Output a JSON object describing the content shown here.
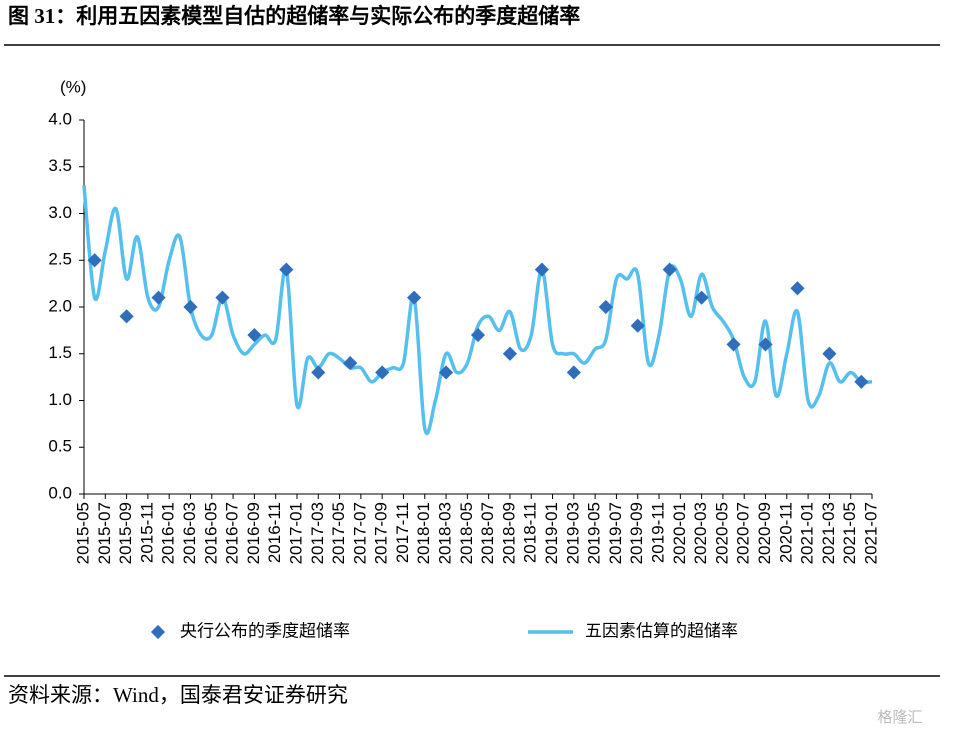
{
  "chart_data": {
    "type": "line",
    "title": "图 31：利用五因素模型自估的超储率与实际公布的季度超储率",
    "y_label": "(%)",
    "source": "资料来源：Wind，国泰君安证券研究",
    "watermark": "格隆汇",
    "categories": [
      "2015-05",
      null,
      "2015-07",
      null,
      "2015-09",
      null,
      "2015-11",
      null,
      "2016-01",
      null,
      "2016-03",
      null,
      "2016-05",
      null,
      "2016-07",
      null,
      "2016-09",
      null,
      "2016-11",
      null,
      "2017-01",
      null,
      "2017-03",
      null,
      "2017-05",
      null,
      "2017-07",
      null,
      "2017-09",
      null,
      "2017-11",
      null,
      "2018-01",
      null,
      "2018-03",
      null,
      "2018-05",
      null,
      "2018-07",
      null,
      "2018-09",
      null,
      "2018-11",
      null,
      "2019-01",
      null,
      "2019-03",
      null,
      "2019-05",
      null,
      "2019-07",
      null,
      "2019-09",
      null,
      "2019-11",
      null,
      "2020-01",
      null,
      "2020-03",
      null,
      "2020-05",
      null,
      "2020-07",
      null,
      "2020-09",
      null,
      "2020-11",
      null,
      "2021-01",
      null,
      "2021-03",
      null,
      "2021-05",
      null,
      "2021-07"
    ],
    "series": [
      {
        "name": "央行公布的季度超储率",
        "color": "#2f6eba",
        "marker": "diamond",
        "values": [
          null,
          2.5,
          null,
          null,
          1.9,
          null,
          null,
          2.1,
          null,
          null,
          2.0,
          null,
          null,
          2.1,
          null,
          null,
          1.7,
          null,
          null,
          2.4,
          null,
          null,
          1.3,
          null,
          null,
          1.4,
          null,
          null,
          1.3,
          null,
          null,
          2.1,
          null,
          null,
          1.3,
          null,
          null,
          1.7,
          null,
          null,
          1.5,
          null,
          null,
          2.4,
          null,
          null,
          1.3,
          null,
          null,
          2.0,
          null,
          null,
          1.8,
          null,
          null,
          2.4,
          null,
          null,
          2.1,
          null,
          null,
          1.6,
          null,
          null,
          1.6,
          null,
          null,
          2.2,
          null,
          null,
          1.5,
          null,
          null,
          1.2,
          null
        ]
      },
      {
        "name": "五因素估算的超储率",
        "color": "#55bfee",
        "marker": "line",
        "values": [
          3.3,
          2.1,
          2.6,
          3.05,
          2.3,
          2.75,
          2.1,
          2.0,
          2.5,
          2.75,
          2.0,
          1.7,
          1.7,
          2.1,
          1.7,
          1.5,
          1.6,
          1.7,
          1.65,
          2.4,
          0.95,
          1.45,
          1.35,
          1.5,
          1.45,
          1.35,
          1.35,
          1.2,
          1.3,
          1.35,
          1.4,
          2.1,
          0.7,
          1.0,
          1.5,
          1.3,
          1.4,
          1.8,
          1.9,
          1.75,
          1.95,
          1.55,
          1.7,
          2.4,
          1.6,
          1.5,
          1.5,
          1.4,
          1.55,
          1.65,
          2.3,
          2.3,
          2.35,
          1.4,
          1.7,
          2.4,
          2.3,
          1.9,
          2.35,
          2.0,
          1.85,
          1.65,
          1.25,
          1.2,
          1.85,
          1.05,
          1.5,
          1.95,
          1.0,
          1.05,
          1.4,
          1.2,
          1.3,
          1.2,
          1.2
        ]
      }
    ],
    "ylim": [
      0,
      4
    ],
    "yticks": [
      {
        "value": 0,
        "label": "0.0"
      },
      0.5,
      {
        "value": 1,
        "label": "1.0"
      },
      1.5,
      {
        "value": 2,
        "label": "2.0"
      },
      2.5,
      {
        "value": 3,
        "label": "3.0"
      },
      3.5,
      {
        "value": 4,
        "label": "4.0"
      }
    ],
    "grid": false
  }
}
